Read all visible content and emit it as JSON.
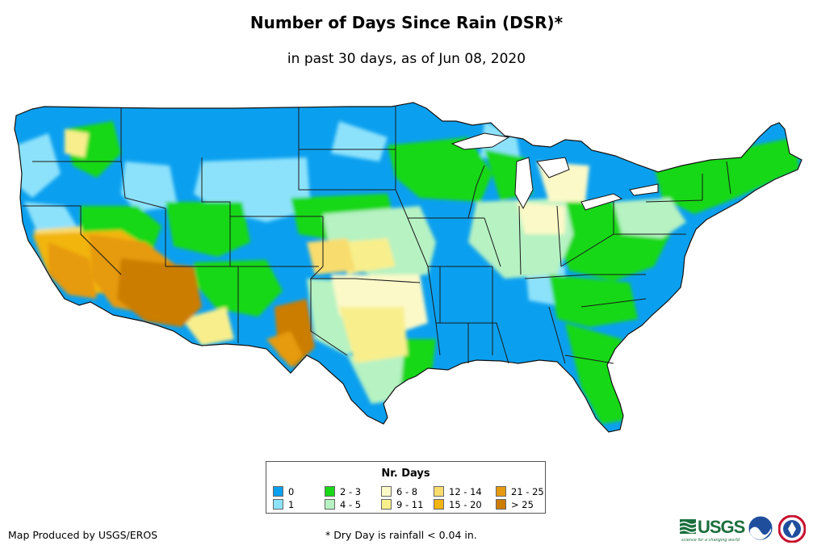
{
  "title": "Number of Days Since Rain (DSR)*",
  "subtitle": "in past 30 days, as of Jun 08, 2020",
  "legend": {
    "title": "Nr. Days",
    "items": [
      {
        "label": "0",
        "color": "#0ba0ef"
      },
      {
        "label": "1",
        "color": "#8de2fb"
      },
      {
        "label": "2 - 3",
        "color": "#18d818"
      },
      {
        "label": "4 - 5",
        "color": "#b6f2c2"
      },
      {
        "label": "6 - 8",
        "color": "#fbf9c8"
      },
      {
        "label": "9 - 11",
        "color": "#f8ef8c"
      },
      {
        "label": "12 - 14",
        "color": "#f8dc6e"
      },
      {
        "label": "15 - 20",
        "color": "#f2b510"
      },
      {
        "label": "21 - 25",
        "color": "#e69a10"
      },
      {
        "label": "> 25",
        "color": "#cb7d05"
      }
    ]
  },
  "footer": {
    "producer": "Map Produced by USGS/EROS",
    "note": "* Dry Day is rainfall < 0.04 in."
  },
  "logos": {
    "usgs_text": "USGS",
    "usgs_tagline": "science for a changing world",
    "noaa_text": "noaa"
  }
}
